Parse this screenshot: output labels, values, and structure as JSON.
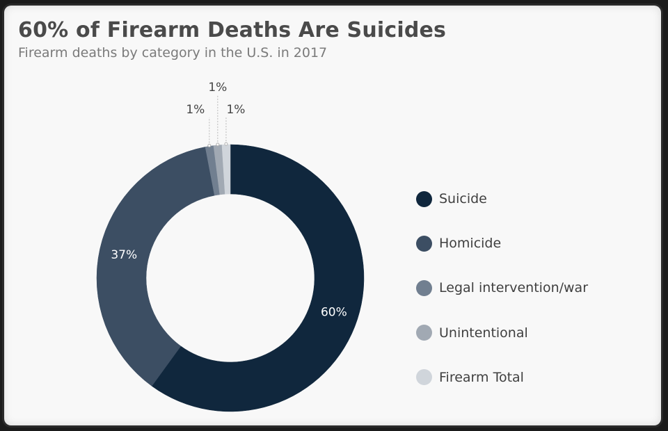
{
  "title": "60% of Firearm Deaths Are Suicides",
  "subtitle": "Firearm deaths by category in the U.S. in 2017",
  "chart_data": {
    "type": "pie",
    "style": "donut",
    "title": "60% of Firearm Deaths Are Suicides",
    "subtitle": "Firearm deaths by category in the U.S. in 2017",
    "categories": [
      "Suicide",
      "Homicide",
      "Legal intervention/war",
      "Unintentional",
      "Firearm Total"
    ],
    "values": [
      60,
      37,
      1,
      1,
      1
    ],
    "labels": [
      "60%",
      "37%",
      "1%",
      "1%",
      "1%"
    ],
    "colors": [
      "#10273d",
      "#3c4e63",
      "#717f90",
      "#a1a9b3",
      "#d0d5db"
    ],
    "label_colors": [
      "#ffffff",
      "#ffffff",
      "#444444",
      "#444444",
      "#444444"
    ],
    "legend_position": "right"
  }
}
